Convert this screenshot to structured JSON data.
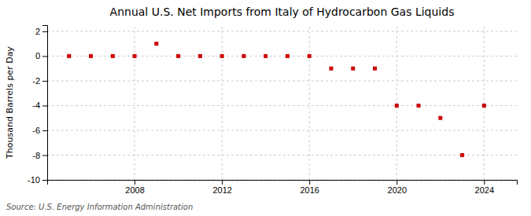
{
  "chart_data": {
    "type": "scatter",
    "title": "Annual U.S. Net Imports from Italy of Hydrocarbon Gas Liquids",
    "ylabel": "Thousand Barrels per Day",
    "source": "Source: U.S. Energy Information Administration",
    "x": [
      2005,
      2006,
      2007,
      2008,
      2009,
      2010,
      2011,
      2012,
      2013,
      2014,
      2015,
      2016,
      2017,
      2018,
      2019,
      2020,
      2021,
      2022,
      2023,
      2024
    ],
    "values": [
      0,
      0,
      0,
      0,
      1,
      0,
      0,
      0,
      0,
      0,
      0,
      0,
      -1,
      -1,
      -1,
      -4,
      -4,
      -5,
      -8,
      -4
    ],
    "color": "#cc0000",
    "marker": "square",
    "xlim": [
      2004.0,
      2025.5
    ],
    "ylim": [
      -10,
      2.5
    ],
    "xticks": [
      2008,
      2012,
      2016,
      2020,
      2024
    ],
    "yticks": [
      -10,
      -8,
      -6,
      -4,
      -2,
      0,
      2
    ],
    "grid": true
  }
}
